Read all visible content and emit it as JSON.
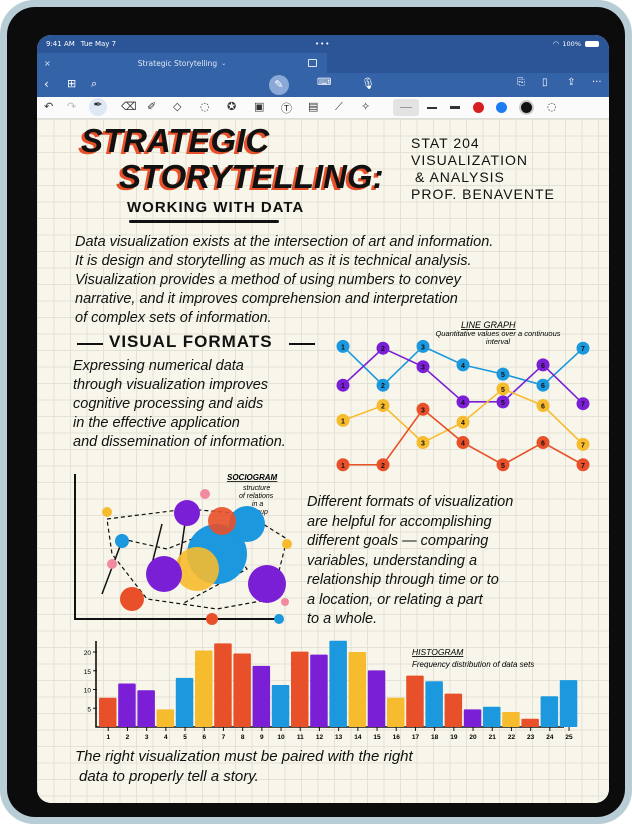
{
  "status": {
    "time": "9:41 AM",
    "date": "Tue May 7",
    "battery": "100%",
    "icons": [
      "wifi-icon",
      "battery-icon"
    ]
  },
  "tab": {
    "title": "Strategic Storytelling",
    "close": "×"
  },
  "nav": {
    "icons": [
      "back-icon",
      "grid-icon",
      "search-icon",
      "pen-mode-icon",
      "keyboard-icon",
      "microphone-icon",
      "add-page-icon",
      "bookmark-icon",
      "share-icon",
      "more-icon"
    ]
  },
  "tools": {
    "icons": [
      "undo-icon",
      "redo-icon",
      "pen-icon",
      "eraser-icon",
      "highlighter-icon",
      "shapes-icon",
      "lasso-icon",
      "sticker-icon",
      "image-icon",
      "text-icon",
      "camera-icon",
      "ruler-icon",
      "laser-icon",
      "thin-stroke",
      "medium-stroke",
      "thick-stroke",
      "red-color",
      "blue-color",
      "black-color",
      "color-picker-icon"
    ],
    "colors": {
      "red": "#d81f1f",
      "blue": "#1e7cf2",
      "black": "#111111"
    }
  },
  "note": {
    "title1": "STRATEGIC",
    "title2": "STORYTELLING:",
    "subtitle": "WORKING WITH DATA",
    "course": [
      "STAT 204",
      "VISUALIZATION",
      "& ANALYSIS",
      "PROF. BENAVENTE"
    ],
    "intro": [
      "Data visualization exists at the intersection of art and information.",
      "It is design and storytelling as much as it is technical analysis.",
      "Visualization provides a method of using numbers to convey",
      "narrative, and it improves comprehension and interpretation",
      "of complex sets of information."
    ],
    "section": "VISUAL FORMATS",
    "formats": [
      "Expressing numerical data",
      "through visualization improves",
      "cognitive processing and aids",
      "in the effective application",
      "and dissemination of information."
    ],
    "goals": [
      "Different formats of visualization",
      "are helpful for accomplishing",
      "different goals — comparing",
      "variables, understanding a",
      "relationship through time or to",
      "a location, or relating a part",
      "to a whole."
    ],
    "closing": [
      "The right visualization must be paired with the right",
      "data to properly tell a story."
    ],
    "sociogram": {
      "label": "SOCIOGRAM",
      "desc": [
        "structure",
        "of relations",
        "in a",
        "group"
      ]
    }
  },
  "colors": {
    "orange": "#e8502a",
    "purple": "#7b1fd6",
    "yellow": "#f7bb2e",
    "blue": "#1b98de"
  },
  "chart_data": [
    {
      "type": "line",
      "title": "LINE GRAPH",
      "subtitle": "Quantitative values over a continuous interval",
      "x": [
        1,
        2,
        3,
        4,
        5,
        6,
        7
      ],
      "series": [
        {
          "color": "blue",
          "values": [
            6.9,
            4.8,
            6.9,
            5.9,
            5.4,
            4.8,
            6.8
          ]
        },
        {
          "color": "purple",
          "values": [
            4.8,
            6.8,
            5.8,
            3.9,
            3.9,
            5.9,
            3.8
          ]
        },
        {
          "color": "yellow",
          "values": [
            2.9,
            3.7,
            1.7,
            2.8,
            4.6,
            3.7,
            1.6
          ]
        },
        {
          "color": "orange",
          "values": [
            0.5,
            0.5,
            3.5,
            1.7,
            0.5,
            1.7,
            0.5
          ]
        }
      ]
    },
    {
      "type": "bar",
      "title": "HISTOGRAM",
      "subtitle": "Frequency distribution of data sets",
      "categories": [
        "1",
        "2",
        "3",
        "4",
        "5",
        "6",
        "7",
        "8",
        "9",
        "10",
        "11",
        "12",
        "13",
        "14",
        "15",
        "16",
        "17",
        "18",
        "19",
        "20",
        "21",
        "22",
        "23",
        "24",
        "25"
      ],
      "values": [
        7.8,
        11.6,
        9.8,
        4.7,
        13.1,
        20.4,
        22.3,
        19.6,
        16.3,
        11.2,
        20.1,
        19.3,
        23,
        20,
        15.1,
        7.8,
        13.7,
        12.2,
        8.9,
        4.7,
        5.4,
        4,
        2.2,
        8.2,
        12.5
      ],
      "bar_colors": [
        "orange",
        "purple",
        "purple",
        "yellow",
        "blue",
        "yellow",
        "orange",
        "orange",
        "purple",
        "blue",
        "orange",
        "purple",
        "blue",
        "yellow",
        "purple",
        "yellow",
        "orange",
        "blue",
        "orange",
        "purple",
        "blue",
        "yellow",
        "orange",
        "blue",
        "blue"
      ],
      "yticks": [
        "5",
        "10",
        "15",
        "20"
      ],
      "ylim": [
        0,
        25
      ]
    }
  ]
}
